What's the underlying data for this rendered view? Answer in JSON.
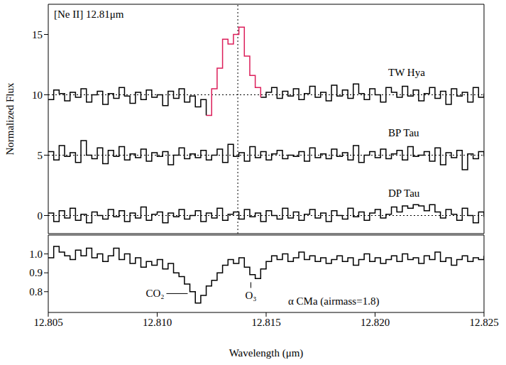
{
  "chart_data": [
    {
      "type": "line",
      "line_style": "step",
      "y_label": "Normalized Flux",
      "tick_labels": "y",
      "vline": 12.8137,
      "xlim": [
        12.805,
        12.825
      ],
      "xticks": [
        12.805,
        {
          "value": 12.81,
          "label": "12.810"
        },
        12.815,
        {
          "value": 12.82,
          "label": "12.820"
        },
        12.825
      ],
      "ylim": [
        -1.5,
        17.5
      ],
      "yticks": [
        0,
        5,
        10,
        15
      ],
      "x": [
        12.805,
        12.80525,
        12.8055,
        12.80575,
        12.806,
        12.80625,
        12.8065,
        12.80675,
        12.807,
        12.80725,
        12.8075,
        12.80775,
        12.808,
        12.80825,
        12.8085,
        12.80875,
        12.809,
        12.80925,
        12.8095,
        12.80975,
        12.81,
        12.81025,
        12.8105,
        12.81075,
        12.811,
        12.81125,
        12.8115,
        12.81175,
        12.812,
        12.81225,
        12.8125,
        12.81275,
        12.813,
        12.81325,
        12.8135,
        12.81375,
        12.814,
        12.81425,
        12.8145,
        12.81475,
        12.815,
        12.81525,
        12.8155,
        12.81575,
        12.816,
        12.81625,
        12.8165,
        12.81675,
        12.817,
        12.81725,
        12.8175,
        12.81775,
        12.818,
        12.81825,
        12.8185,
        12.81875,
        12.819,
        12.81925,
        12.8195,
        12.81975,
        12.82,
        12.82025,
        12.8205,
        12.82075,
        12.821,
        12.82125,
        12.8215,
        12.82175,
        12.822,
        12.82225,
        12.8225,
        12.82275,
        12.823,
        12.82325,
        12.8235,
        12.82375,
        12.824,
        12.82425,
        12.8245,
        12.82475,
        12.825
      ],
      "series": [
        {
          "name": "TW Hya",
          "color": "#000000",
          "baseline": 10,
          "values": [
            9.6,
            10.4,
            10.1,
            9.5,
            10.2,
            9.8,
            10.5,
            9.4,
            10.0,
            10.3,
            9.2,
            10.1,
            9.7,
            10.6,
            9.9,
            9.3,
            10.2,
            9.6,
            10.4,
            9.8,
            10.0,
            9.1,
            10.3,
            9.7,
            10.5,
            9.4,
            9.9,
            9.0,
            9.6,
            8.3,
            null,
            null,
            null,
            null,
            null,
            null,
            null,
            null,
            null,
            9.8,
            10.2,
            10.6,
            9.7,
            10.3,
            9.9,
            10.5,
            9.6,
            10.1,
            10.7,
            9.8,
            10.2,
            9.5,
            10.8,
            9.9,
            10.4,
            9.7,
            10.9,
            10.1,
            9.6,
            10.5,
            10.0,
            9.4,
            10.6,
            10.2,
            9.8,
            10.7,
            9.9,
            10.4,
            9.5,
            10.1,
            10.6,
            9.7,
            10.3,
            9.2,
            10.5,
            9.9,
            10.2,
            9.4,
            10.6,
            9.8,
            10.1
          ]
        },
        {
          "name": "[Ne II] 12.81μm",
          "color": "#dc1e5a",
          "values": [
            null,
            null,
            null,
            null,
            null,
            null,
            null,
            null,
            null,
            null,
            null,
            null,
            null,
            null,
            null,
            null,
            null,
            null,
            null,
            null,
            null,
            null,
            null,
            null,
            null,
            null,
            null,
            null,
            null,
            8.3,
            10.5,
            12.2,
            14.6,
            14.2,
            15.0,
            15.6,
            13.2,
            11.6,
            10.6,
            9.8,
            null,
            null,
            null,
            null,
            null,
            null,
            null,
            null,
            null,
            null,
            null,
            null,
            null,
            null,
            null,
            null,
            null,
            null,
            null,
            null,
            null,
            null,
            null,
            null,
            null,
            null,
            null,
            null,
            null,
            null,
            null,
            null,
            null,
            null,
            null,
            null,
            null,
            null,
            null,
            null,
            null
          ]
        },
        {
          "name": "BP Tau",
          "color": "#000000",
          "baseline": 5,
          "values": [
            5.3,
            4.6,
            5.8,
            4.9,
            5.2,
            4.4,
            6.2,
            5.0,
            4.7,
            5.6,
            4.3,
            5.4,
            4.9,
            5.7,
            4.6,
            5.1,
            4.8,
            5.5,
            4.5,
            5.2,
            4.9,
            5.3,
            4.2,
            5.0,
            5.6,
            4.7,
            5.1,
            4.8,
            5.4,
            4.6,
            5.0,
            5.5,
            4.4,
            5.9,
            4.9,
            5.2,
            4.5,
            5.7,
            4.8,
            5.3,
            4.6,
            5.1,
            5.4,
            4.7,
            5.0,
            4.9,
            5.3,
            4.5,
            5.6,
            4.8,
            5.1,
            4.7,
            5.5,
            4.9,
            5.2,
            4.6,
            5.8,
            4.4,
            5.0,
            5.3,
            4.8,
            5.5,
            4.7,
            5.1,
            5.4,
            4.6,
            5.7,
            4.9,
            5.0,
            5.3,
            4.5,
            5.6,
            4.2,
            5.2,
            4.8,
            5.4,
            3.8,
            5.1,
            4.7,
            5.3,
            4.9
          ]
        },
        {
          "name": "DP Tau",
          "color": "#000000",
          "baseline": 0,
          "values": [
            0.2,
            -0.5,
            0.4,
            -0.2,
            0.6,
            -0.4,
            0.1,
            -0.6,
            0.3,
            0.0,
            -0.3,
            0.5,
            -0.1,
            0.4,
            -0.5,
            0.2,
            -0.2,
            0.7,
            -0.4,
            0.1,
            0.3,
            -0.6,
            0.2,
            -0.1,
            0.5,
            -0.3,
            0.0,
            0.4,
            -0.5,
            0.2,
            -0.2,
            0.6,
            -0.4,
            0.1,
            0.3,
            -0.3,
            0.5,
            -0.1,
            0.2,
            -0.5,
            0.4,
            0.0,
            -0.3,
            0.6,
            -0.2,
            0.3,
            -0.4,
            0.1,
            0.5,
            -0.2,
            0.2,
            -0.5,
            0.4,
            0.0,
            -0.3,
            0.6,
            -0.1,
            0.3,
            -0.4,
            0.2,
            0.5,
            -0.2,
            0.1,
            0.7,
            0.3,
            0.8,
            0.6,
            0.9,
            0.8,
            0.4,
            0.9,
            0.3,
            -0.2,
            0.5,
            0.1,
            -0.4,
            0.6,
            0.0,
            -0.6,
            0.3,
            -0.1
          ]
        }
      ]
    },
    {
      "type": "line",
      "line_style": "step",
      "x_label": "Wavelength (μm)",
      "xlim": [
        12.805,
        12.825
      ],
      "xticks": [
        12.805,
        {
          "value": 12.81,
          "label": "12.810"
        },
        12.815,
        {
          "value": 12.82,
          "label": "12.820"
        },
        12.825
      ],
      "ylim": [
        0.69,
        1.1
      ],
      "yticks": [
        0.8,
        0.9,
        {
          "value": 1,
          "label": "1.0"
        }
      ],
      "x": [
        12.805,
        12.80525,
        12.8055,
        12.80575,
        12.806,
        12.80625,
        12.8065,
        12.80675,
        12.807,
        12.80725,
        12.8075,
        12.80775,
        12.808,
        12.80825,
        12.8085,
        12.80875,
        12.809,
        12.80925,
        12.8095,
        12.80975,
        12.81,
        12.81025,
        12.8105,
        12.81075,
        12.811,
        12.81125,
        12.8115,
        12.81175,
        12.812,
        12.81225,
        12.8125,
        12.81275,
        12.813,
        12.81325,
        12.8135,
        12.81375,
        12.814,
        12.81425,
        12.8145,
        12.81475,
        12.815,
        12.81525,
        12.8155,
        12.81575,
        12.816,
        12.81625,
        12.8165,
        12.81675,
        12.817,
        12.81725,
        12.8175,
        12.81775,
        12.818,
        12.81825,
        12.8185,
        12.81875,
        12.819,
        12.81925,
        12.8195,
        12.81975,
        12.82,
        12.82025,
        12.8205,
        12.82075,
        12.821,
        12.82125,
        12.8215,
        12.82175,
        12.822,
        12.82225,
        12.8225,
        12.82275,
        12.823,
        12.82325,
        12.8235,
        12.82375,
        12.824,
        12.82425,
        12.8245,
        12.82475,
        12.825
      ],
      "series": [
        {
          "name": "α CMa (airmass=1.8)",
          "color": "#000000",
          "values": [
            0.98,
            1.04,
            1.01,
            0.99,
            0.97,
            1.02,
            0.99,
            1.03,
            0.98,
            1.0,
            0.96,
            0.99,
            1.03,
            0.97,
            1.0,
            0.95,
            0.98,
            0.93,
            0.96,
            0.94,
            0.97,
            0.92,
            0.95,
            0.9,
            0.88,
            0.84,
            0.8,
            0.74,
            0.78,
            0.83,
            0.86,
            0.9,
            0.94,
            0.97,
            0.95,
            0.98,
            0.93,
            0.89,
            0.87,
            0.92,
            0.96,
            0.99,
            0.97,
            1.0,
            0.96,
            0.98,
            1.01,
            0.97,
            0.99,
            0.96,
            0.98,
            0.95,
            0.97,
            0.99,
            0.96,
            0.98,
            0.94,
            0.97,
            1.0,
            0.96,
            0.98,
            0.95,
            0.97,
            0.99,
            0.96,
            1.0,
            0.97,
            0.98,
            0.95,
            0.99,
            0.97,
            1.01,
            0.96,
            0.98,
            0.94,
            0.97,
            0.99,
            0.96,
            0.98,
            0.97,
            0.99
          ]
        }
      ],
      "annotations": [
        {
          "text": "CO₂",
          "x": 12.8114,
          "y": 0.79,
          "label_side": "left"
        },
        {
          "text": "O₃",
          "x": 12.8143,
          "y": 0.85,
          "label_side": "below"
        }
      ]
    }
  ]
}
